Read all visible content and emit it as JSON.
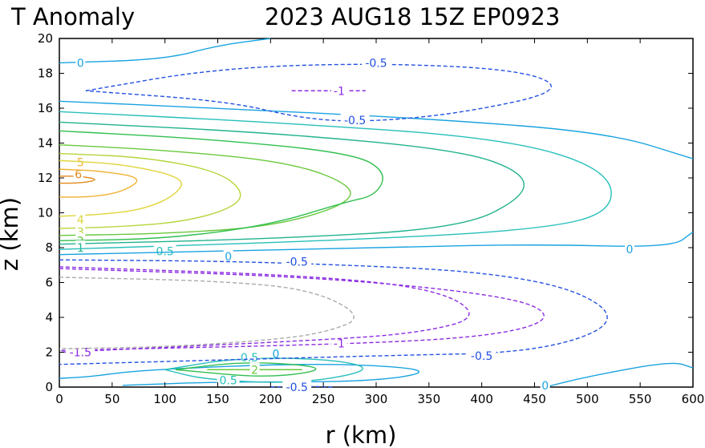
{
  "header": {
    "left_title": "T Anomaly",
    "right_title": "2023 AUG18 15Z   EP0923"
  },
  "chart_data": {
    "type": "contour",
    "xlabel": "r (km)",
    "ylabel": "z (km)",
    "xlim": [
      0,
      600
    ],
    "ylim": [
      0,
      20
    ],
    "xticks": [
      0,
      50,
      100,
      150,
      200,
      250,
      300,
      350,
      400,
      450,
      500,
      550,
      600
    ],
    "yticks": [
      0,
      2,
      4,
      6,
      8,
      10,
      12,
      14,
      16,
      18,
      20
    ],
    "grid": false,
    "contours": [
      {
        "level": 6,
        "color": "#e08a1e",
        "dashed": false,
        "points": [
          [
            0,
            12.1
          ],
          [
            20,
            12.1
          ],
          [
            38,
            11.9
          ],
          [
            20,
            11.7
          ],
          [
            0,
            11.7
          ]
        ],
        "labels": [
          {
            "text": "6",
            "x": 18,
            "y": 12.2
          }
        ]
      },
      {
        "level": 5,
        "color": "#f0b030",
        "dashed": false,
        "points": [
          [
            0,
            12.5
          ],
          [
            40,
            12.4
          ],
          [
            80,
            12.0
          ],
          [
            60,
            11.2
          ],
          [
            30,
            10.9
          ],
          [
            0,
            10.9
          ]
        ],
        "labels": [
          {
            "text": "5",
            "x": 20,
            "y": 12.9
          }
        ]
      },
      {
        "level": 4,
        "color": "#dfd53a",
        "dashed": false,
        "points": [
          [
            0,
            13.0
          ],
          [
            60,
            12.8
          ],
          [
            120,
            12.0
          ],
          [
            110,
            11.0
          ],
          [
            80,
            10.2
          ],
          [
            40,
            9.9
          ],
          [
            0,
            9.8
          ]
        ],
        "labels": [
          {
            "text": "4",
            "x": 20,
            "y": 9.6
          }
        ]
      },
      {
        "level": 3,
        "color": "#b5d53c",
        "dashed": false,
        "points": [
          [
            0,
            13.4
          ],
          [
            80,
            13.2
          ],
          [
            150,
            12.4
          ],
          [
            175,
            11.2
          ],
          [
            165,
            10.3
          ],
          [
            120,
            9.5
          ],
          [
            60,
            9.2
          ],
          [
            0,
            9.1
          ]
        ],
        "labels": [
          {
            "text": "3",
            "x": 20,
            "y": 8.9
          }
        ]
      },
      {
        "level": 2,
        "color": "#6ac83c",
        "dashed": false,
        "points": [
          [
            0,
            13.9
          ],
          [
            100,
            13.6
          ],
          [
            220,
            12.9
          ],
          [
            280,
            11.5
          ],
          [
            270,
            10.4
          ],
          [
            200,
            9.2
          ],
          [
            100,
            8.8
          ],
          [
            0,
            8.7
          ]
        ],
        "labels": [
          {
            "text": "2",
            "x": 20,
            "y": 8.4
          }
        ]
      },
      {
        "level": 1.5,
        "color": "#2fbf4f",
        "dashed": false,
        "points": [
          [
            0,
            14.7
          ],
          [
            150,
            14.2
          ],
          [
            280,
            13.4
          ],
          [
            310,
            12.3
          ],
          [
            300,
            11.0
          ],
          [
            270,
            10.6
          ],
          [
            200,
            9.3
          ],
          [
            100,
            8.5
          ],
          [
            0,
            8.4
          ]
        ],
        "labels": []
      },
      {
        "level": 1,
        "color": "#20b28c",
        "dashed": false,
        "points": [
          [
            0,
            15.2
          ],
          [
            200,
            14.6
          ],
          [
            380,
            13.6
          ],
          [
            440,
            12.3
          ],
          [
            440,
            10.9
          ],
          [
            380,
            9.1
          ],
          [
            200,
            8.5
          ],
          [
            0,
            8.2
          ]
        ],
        "labels": [
          {
            "text": "1",
            "x": 20,
            "y": 8.0
          }
        ]
      },
      {
        "level": 0.5,
        "color": "#26bfba",
        "dashed": false,
        "points": [
          [
            0,
            15.8
          ],
          [
            200,
            15.2
          ],
          [
            420,
            14.3
          ],
          [
            520,
            12.5
          ],
          [
            525,
            10.0
          ],
          [
            450,
            9.0
          ],
          [
            260,
            8.4
          ],
          [
            0,
            7.9
          ]
        ],
        "labels": [
          {
            "text": "0.5",
            "x": 100,
            "y": 7.8
          }
        ]
      },
      {
        "level": 0,
        "color": "#1aa3e0",
        "dashed": false,
        "points": [
          [
            0,
            16.4
          ],
          [
            150,
            16.0
          ],
          [
            350,
            15.4
          ],
          [
            520,
            14.6
          ],
          [
            600,
            13.1
          ]
        ],
        "labels": []
      },
      {
        "level": 0,
        "color": "#1aa3e0",
        "dashed": false,
        "points": [
          [
            0,
            18.6
          ],
          [
            100,
            18.8
          ],
          [
            150,
            19.6
          ],
          [
            200,
            20
          ]
        ],
        "labels": [
          {
            "text": "0",
            "x": 20,
            "y": 18.6
          }
        ]
      },
      {
        "level": 0,
        "color": "#1aa3e0",
        "dashed": false,
        "points": [
          [
            0,
            7.6
          ],
          [
            300,
            8.0
          ],
          [
            450,
            8.2
          ],
          [
            580,
            8.0
          ],
          [
            600,
            8.9
          ]
        ],
        "labels": [
          {
            "text": "0",
            "x": 160,
            "y": 7.5
          },
          {
            "text": "0",
            "x": 540,
            "y": 7.9
          }
        ]
      },
      {
        "level": 0,
        "color": "#1aa3e0",
        "dashed": false,
        "points": [
          [
            0,
            0.5
          ],
          [
            30,
            0.6
          ],
          [
            80,
            1.0
          ],
          [
            250,
            1.4
          ],
          [
            360,
            1.0
          ],
          [
            300,
            0.3
          ],
          [
            150,
            0.3
          ],
          [
            60,
            0.1
          ]
        ],
        "labels": [
          {
            "text": "0",
            "x": 205,
            "y": 1.9
          }
        ]
      },
      {
        "level": 0,
        "color": "#1aa3e0",
        "dashed": false,
        "points": [
          [
            460,
            0
          ],
          [
            500,
            0.6
          ],
          [
            580,
            1.5
          ],
          [
            600,
            1.1
          ]
        ],
        "labels": [
          {
            "text": "0",
            "x": 460,
            "y": 0.1
          }
        ]
      },
      {
        "level": 0.5,
        "color": "#26bfba",
        "dashed": false,
        "points": [
          [
            100,
            1.0
          ],
          [
            170,
            1.7
          ],
          [
            260,
            1.6
          ],
          [
            300,
            1.0
          ],
          [
            230,
            0.2
          ],
          [
            140,
            0.4
          ],
          [
            100,
            1.0
          ]
        ],
        "labels": [
          {
            "text": "0.5",
            "x": 160,
            "y": 0.4
          },
          {
            "text": "0.5",
            "x": 180,
            "y": 1.7
          }
        ]
      },
      {
        "level": 1,
        "color": "#2fbf4f",
        "dashed": false,
        "points": [
          [
            110,
            1.0
          ],
          [
            180,
            1.5
          ],
          [
            260,
            1.1
          ],
          [
            200,
            0.5
          ],
          [
            110,
            1.0
          ]
        ],
        "labels": []
      },
      {
        "level": 2,
        "color": "#6ac83c",
        "dashed": false,
        "points": [
          [
            140,
            1.0
          ],
          [
            185,
            1.0
          ],
          [
            230,
            1.0
          ]
        ],
        "labels": [
          {
            "text": "2",
            "x": 185,
            "y": 1.0
          }
        ]
      },
      {
        "level": -0.5,
        "color": "#2250e0",
        "dashed": true,
        "points": [
          [
            25,
            17.0
          ],
          [
            150,
            18.3
          ],
          [
            300,
            18.6
          ],
          [
            440,
            18.2
          ],
          [
            480,
            17.0
          ],
          [
            380,
            15.7
          ],
          [
            290,
            15.2
          ],
          [
            230,
            15.4
          ],
          [
            160,
            16.4
          ],
          [
            25,
            17.0
          ]
        ],
        "labels": [
          {
            "text": "-0.5",
            "x": 300,
            "y": 18.6
          },
          {
            "text": "-0.5",
            "x": 280,
            "y": 15.3
          }
        ]
      },
      {
        "level": -0.5,
        "color": "#2250e0",
        "dashed": true,
        "points": [
          [
            0,
            7.3
          ],
          [
            200,
            7.2
          ],
          [
            450,
            6.5
          ],
          [
            540,
            4.0
          ],
          [
            460,
            2.0
          ],
          [
            300,
            1.8
          ],
          [
            0,
            1.3
          ]
        ],
        "labels": [
          {
            "text": "-0.5",
            "x": 225,
            "y": 7.2
          },
          {
            "text": "-0.5",
            "x": 400,
            "y": 1.8
          }
        ]
      },
      {
        "level": -0.5,
        "color": "#2250e0",
        "dashed": true,
        "points": [
          [
            200,
            0
          ],
          [
            230,
            0.05
          ],
          [
            260,
            0
          ]
        ],
        "labels": [
          {
            "text": "-0.5",
            "x": 225,
            "y": 0.0
          }
        ]
      },
      {
        "level": -1,
        "color": "#8a2be2",
        "dashed": true,
        "points": [
          [
            220,
            17.0
          ],
          [
            255,
            17.0
          ],
          [
            290,
            17.0
          ]
        ],
        "labels": [
          {
            "text": "-1",
            "x": 265,
            "y": 17.0
          }
        ]
      },
      {
        "level": -1,
        "color": "#8a2be2",
        "dashed": true,
        "points": [
          [
            0,
            6.8
          ],
          [
            250,
            6.3
          ],
          [
            430,
            5.2
          ],
          [
            470,
            4.0
          ],
          [
            420,
            3.0
          ],
          [
            300,
            2.5
          ],
          [
            0,
            2.1
          ]
        ],
        "labels": [
          {
            "text": "-1",
            "x": 265,
            "y": 2.5
          }
        ]
      },
      {
        "level": -1.5,
        "color": "#8a2be2",
        "dashed": true,
        "points": [
          [
            0,
            6.9
          ],
          [
            240,
            6.4
          ],
          [
            360,
            5.6
          ],
          [
            400,
            4.0
          ],
          [
            340,
            3.1
          ],
          [
            250,
            2.7
          ],
          [
            0,
            2.0
          ]
        ],
        "labels": [
          {
            "text": "-1.5",
            "x": 20,
            "y": 2.0
          }
        ]
      },
      {
        "level": -2,
        "color": "#aaaaaa",
        "dashed": true,
        "points": [
          [
            0,
            6.3
          ],
          [
            150,
            6.1
          ],
          [
            240,
            5.6
          ],
          [
            290,
            4.0
          ],
          [
            250,
            3.1
          ],
          [
            200,
            2.7
          ],
          [
            100,
            2.3
          ],
          [
            0,
            2.2
          ]
        ],
        "labels": []
      }
    ]
  }
}
